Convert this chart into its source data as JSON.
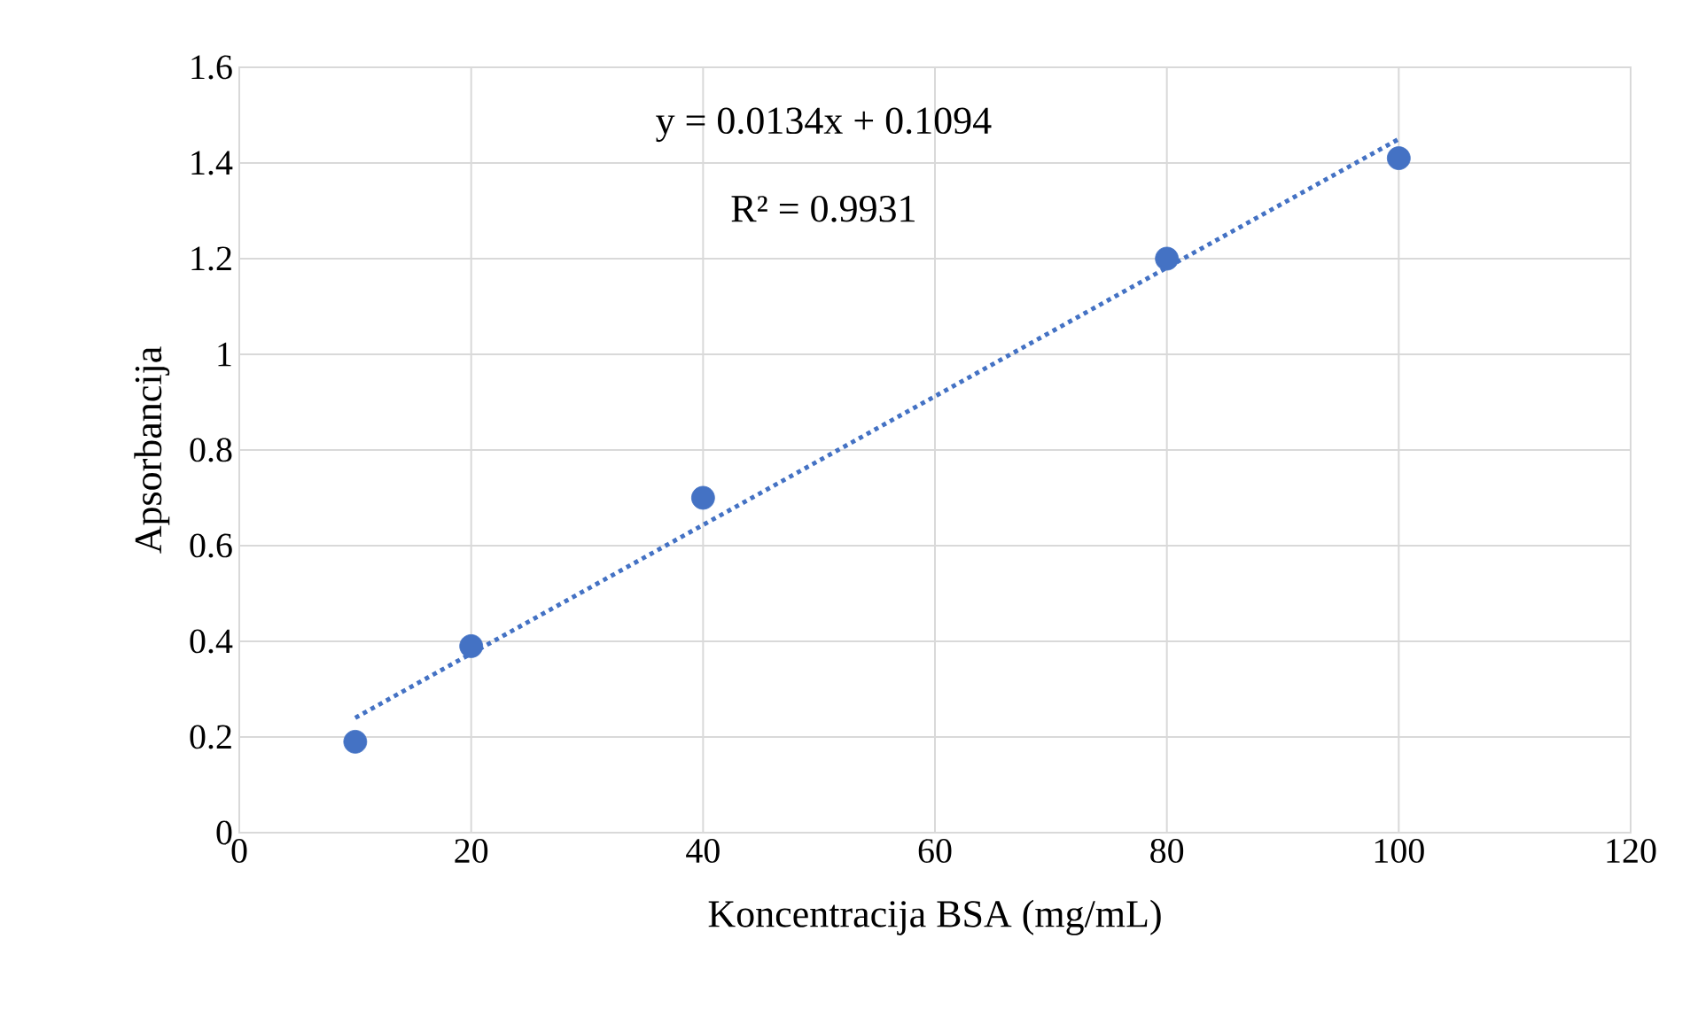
{
  "chart_data": {
    "type": "scatter",
    "xlabel": "Koncentracija BSA (mg/mL)",
    "ylabel": "Apsorbancija",
    "series": [
      {
        "color": "#4472c4",
        "marker": "circle",
        "x": [
          10,
          20,
          40,
          80,
          100
        ],
        "values": [
          0.19,
          0.39,
          0.7,
          1.2,
          1.41
        ]
      },
      {
        "type": "line",
        "color": "#4472c4",
        "marker": "none",
        "line_style": "dotted",
        "x": [
          10,
          100
        ],
        "values": [
          0.24,
          1.45
        ]
      }
    ],
    "annotations": [
      "y = 0.0134x + 0.1094",
      "R² = 0.9931"
    ],
    "xlim": [
      0,
      120
    ],
    "xticks": [
      0,
      20,
      40,
      60,
      80,
      100,
      120
    ],
    "ylim": [
      0,
      1.6
    ],
    "yticks": [
      0,
      0.2,
      0.4,
      0.6,
      0.8,
      1,
      1.2,
      1.4,
      1.6
    ],
    "grid": true
  }
}
